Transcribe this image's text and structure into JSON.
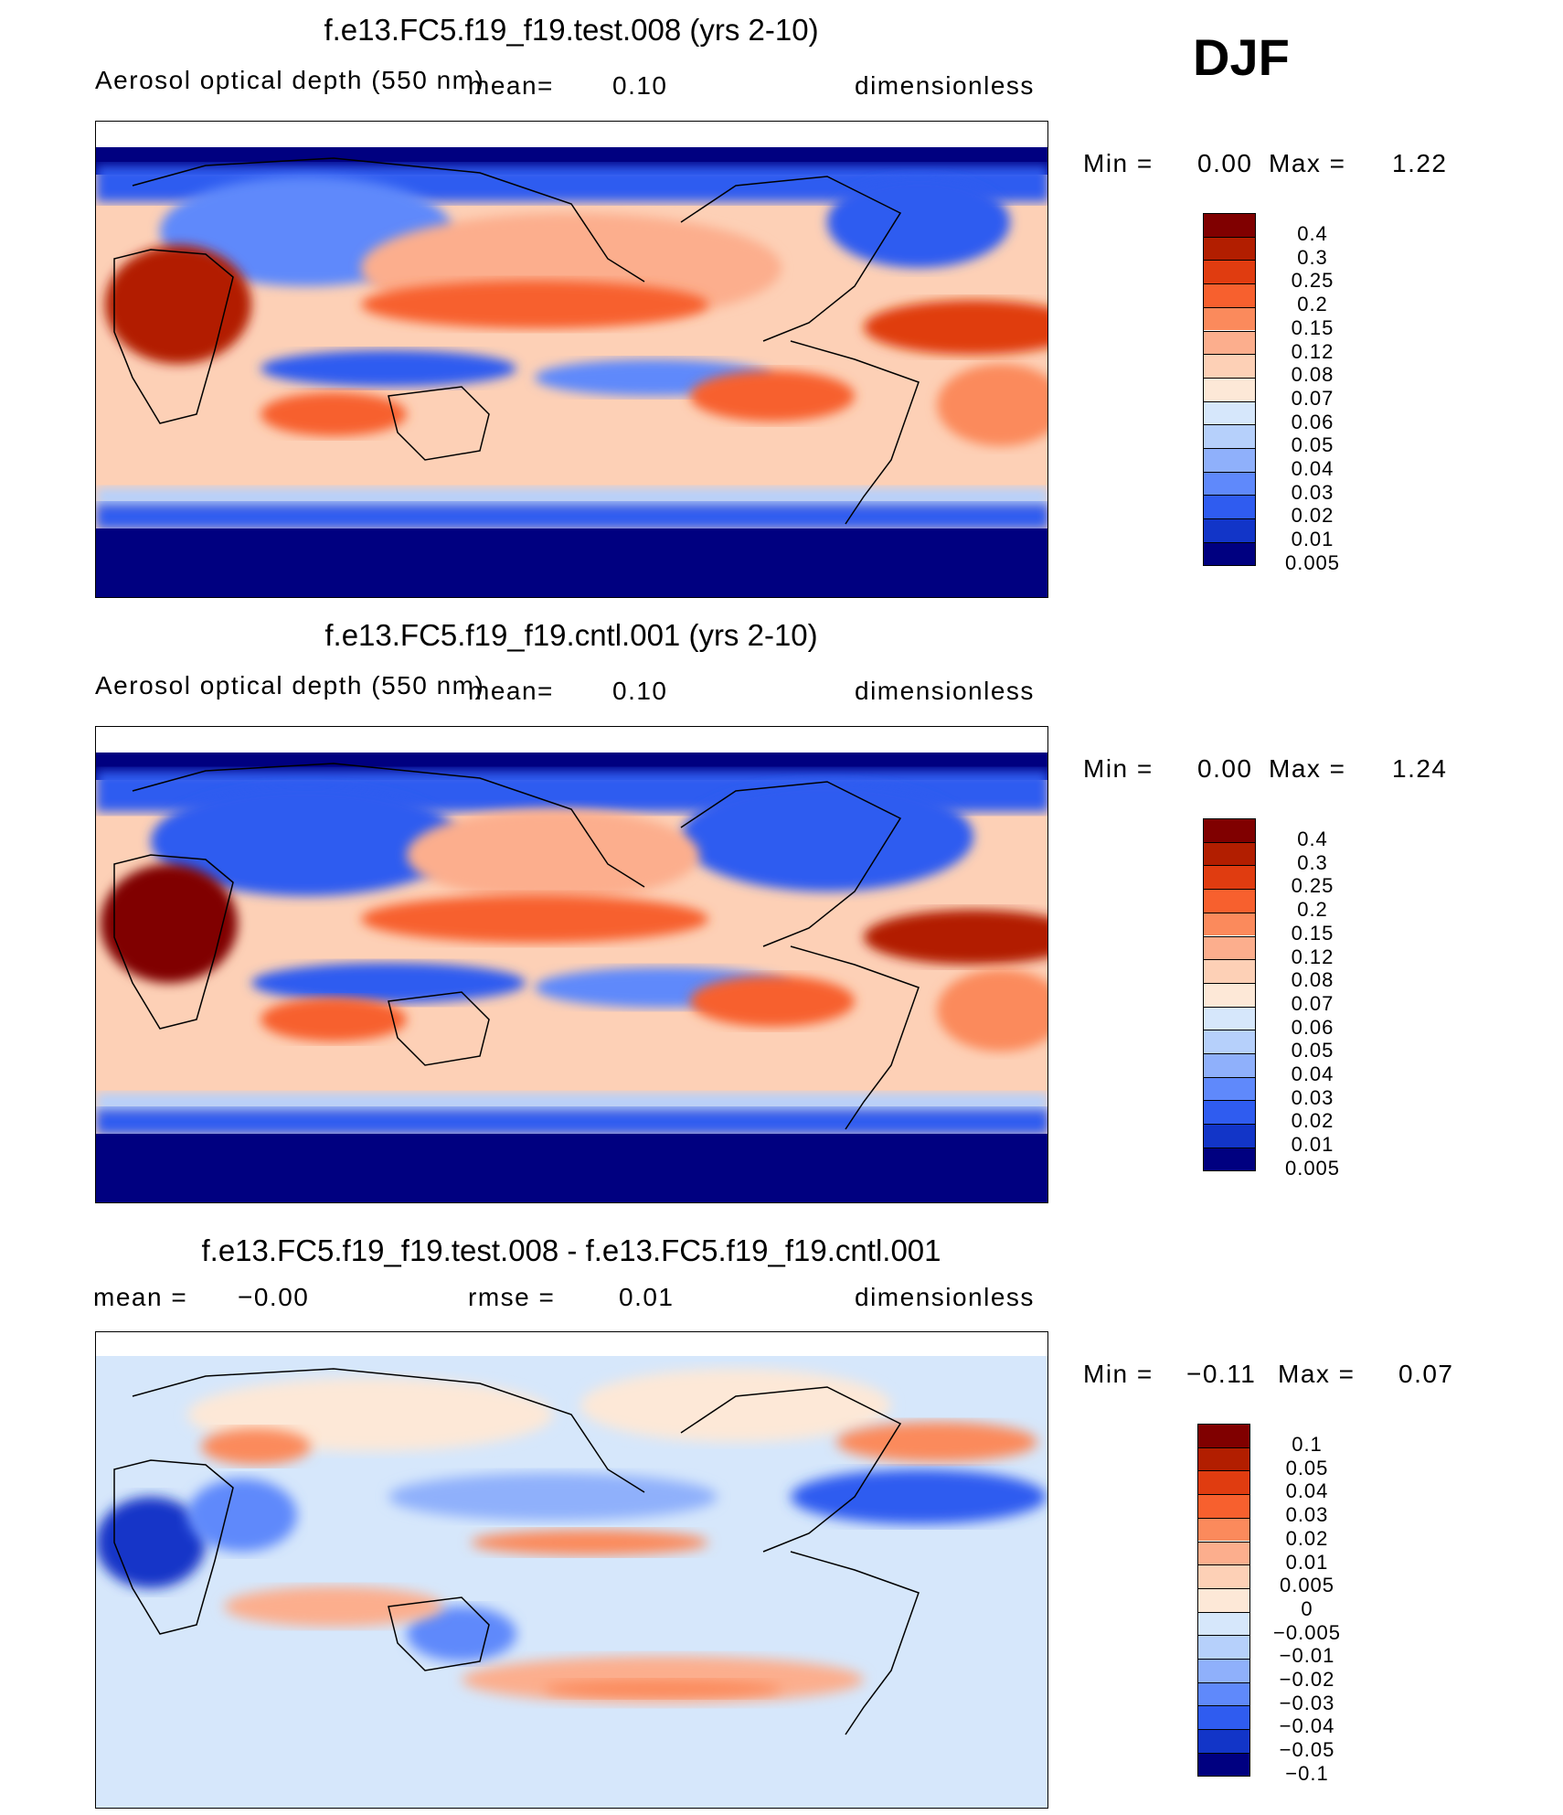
{
  "season": "DJF",
  "chart_data": [
    {
      "type": "heatmap",
      "title": "f.e13.FC5.f19_f19.test.008 (yrs 2-10)",
      "variable": "Aerosol optical depth (550 nm)",
      "mean_label": "mean=",
      "mean": "0.10",
      "units": "dimensionless",
      "min_label": "Min =",
      "min": "0.00",
      "max_label": "Max =",
      "max": "1.22",
      "levels": [
        "0.4",
        "0.3",
        "0.25",
        "0.2",
        "0.15",
        "0.12",
        "0.08",
        "0.07",
        "0.06",
        "0.05",
        "0.04",
        "0.03",
        "0.02",
        "0.01",
        "0.005"
      ],
      "colors": [
        "#800000",
        "#b21e00",
        "#e03c10",
        "#f7602e",
        "#fb8a5c",
        "#fcae8d",
        "#fdd0b6",
        "#fde8d7",
        "#d6e7fb",
        "#b6d0fb",
        "#8fb0fb",
        "#5f89fb",
        "#2f5cf0",
        "#1235c8",
        "#000080"
      ]
    },
    {
      "type": "heatmap",
      "title": "f.e13.FC5.f19_f19.cntl.001 (yrs 2-10)",
      "variable": "Aerosol optical depth (550 nm)",
      "mean_label": "mean=",
      "mean": "0.10",
      "units": "dimensionless",
      "min_label": "Min =",
      "min": "0.00",
      "max_label": "Max =",
      "max": "1.24",
      "levels": [
        "0.4",
        "0.3",
        "0.25",
        "0.2",
        "0.15",
        "0.12",
        "0.08",
        "0.07",
        "0.06",
        "0.05",
        "0.04",
        "0.03",
        "0.02",
        "0.01",
        "0.005"
      ],
      "colors": [
        "#800000",
        "#b21e00",
        "#e03c10",
        "#f7602e",
        "#fb8a5c",
        "#fcae8d",
        "#fdd0b6",
        "#fde8d7",
        "#d6e7fb",
        "#b6d0fb",
        "#8fb0fb",
        "#5f89fb",
        "#2f5cf0",
        "#1235c8",
        "#000080"
      ]
    },
    {
      "type": "heatmap",
      "title": "f.e13.FC5.f19_f19.test.008 - f.e13.FC5.f19_f19.cntl.001",
      "mean_label": "mean =",
      "mean": "−0.00",
      "rmse_label": "rmse =",
      "rmse": "0.01",
      "units": "dimensionless",
      "min_label": "Min =",
      "min": "−0.11",
      "max_label": "Max =",
      "max": "0.07",
      "levels": [
        "0.1",
        "0.05",
        "0.04",
        "0.03",
        "0.02",
        "0.01",
        "0.005",
        "0",
        "−0.005",
        "−0.01",
        "−0.02",
        "−0.03",
        "−0.04",
        "−0.05",
        "−0.1"
      ],
      "colors": [
        "#800000",
        "#b21e00",
        "#e03c10",
        "#f7602e",
        "#fb8a5c",
        "#fcae8d",
        "#fdd0b6",
        "#fde8d7",
        "#d6e7fb",
        "#b6d0fb",
        "#8fb0fb",
        "#5f89fb",
        "#2f5cf0",
        "#1235c8",
        "#000080"
      ]
    }
  ]
}
